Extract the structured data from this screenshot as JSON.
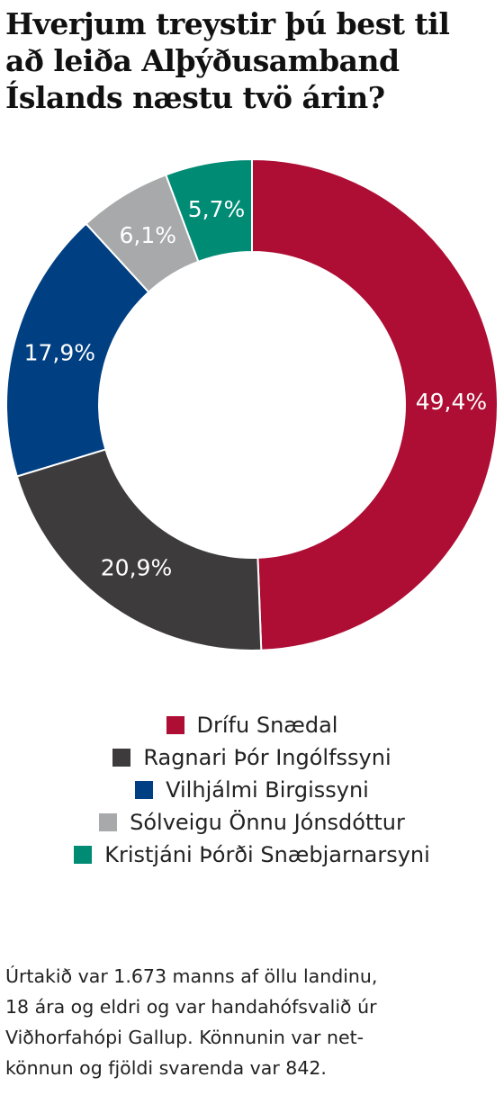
{
  "title_lines": [
    "Hverjum treystir þú best til",
    "að leiða Alþýðusamband",
    "Íslands næstu tvö árin?"
  ],
  "chart_data": {
    "type": "pie",
    "donut": true,
    "title": "Hverjum treystir þú best til að leiða Alþýðusamband Íslands næstu tvö árin?",
    "legend_position": "bottom",
    "series": [
      {
        "name": "Drífu Snædal",
        "value": 49.4,
        "label": "49,4%",
        "color": "#ae0d34"
      },
      {
        "name": "Ragnari Þór Ingólfssyni",
        "value": 20.9,
        "label": "20,9%",
        "color": "#3e3b3c"
      },
      {
        "name": "Vilhjálmi Birgissyni",
        "value": 17.9,
        "label": "17,9%",
        "color": "#003f82"
      },
      {
        "name": "Sólveigu Önnu Jónsdóttur",
        "value": 6.1,
        "label": "6,1%",
        "color": "#a8a9ab"
      },
      {
        "name": "Kristjáni Þórði Snæbjarnarsyni",
        "value": 5.7,
        "label": "5,7%",
        "color": "#008b74"
      }
    ]
  },
  "note_lines": [
    "Úrtakið var 1.673 manns af öllu landinu,",
    "18 ára og eldri og var handahófsvalið úr",
    "Viðhorfahópi Gallup. Könnunin var net-",
    "könnun og fjöldi svarenda var 842."
  ]
}
